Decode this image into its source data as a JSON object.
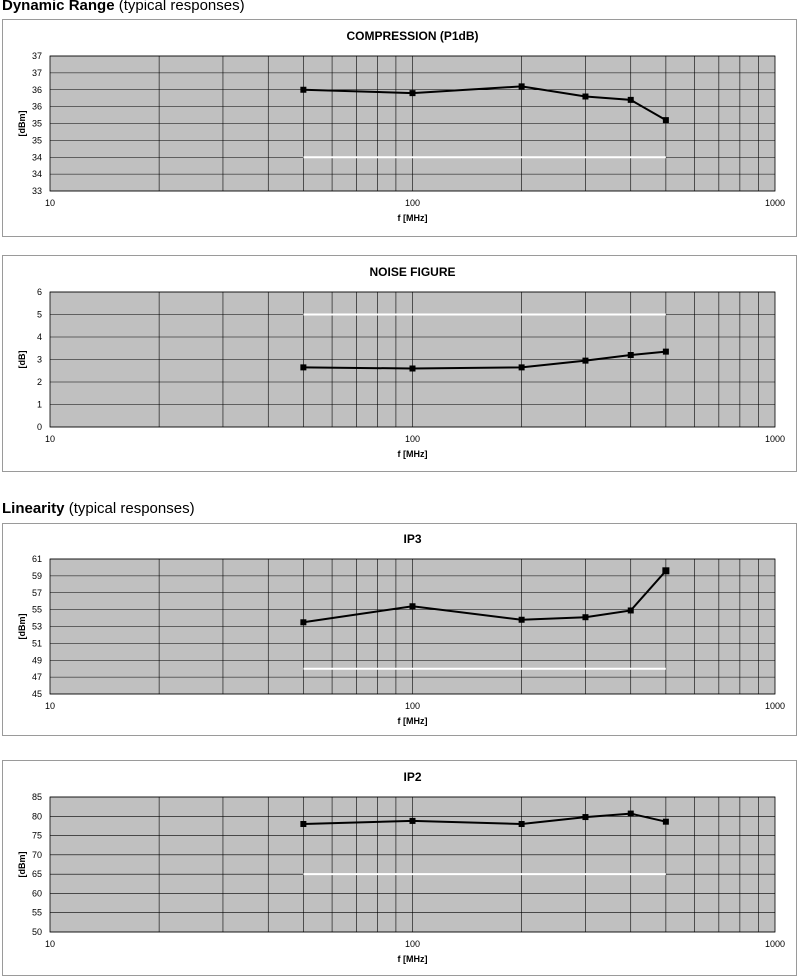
{
  "sections": [
    {
      "heading_bold": "Dynamic Range",
      "heading_rest": " (typical responses)"
    },
    {
      "heading_bold": "Linearity",
      "heading_rest": " (typical responses)"
    }
  ],
  "chart_data": [
    {
      "type": "line",
      "title": "COMPRESSION (P1dB)",
      "xlabel": "f [MHz]",
      "ylabel": "[dBm]",
      "x_scale": "log",
      "xlim": [
        10,
        1000
      ],
      "x_tick_labels": [
        "10",
        "100",
        "1000"
      ],
      "ylim": [
        33,
        37
      ],
      "y_tick_labels": [
        "37",
        "37",
        "36",
        "36",
        "35",
        "35",
        "34",
        "34",
        "33"
      ],
      "grid": true,
      "series": [
        {
          "x": [
            50,
            100,
            200,
            300,
            400,
            500
          ],
          "values": [
            36.0,
            35.9,
            36.1,
            35.8,
            35.7,
            35.1
          ]
        }
      ],
      "white_line": {
        "x": [
          50,
          500
        ],
        "y": 34.0
      }
    },
    {
      "type": "line",
      "title": "NOISE FIGURE",
      "xlabel": "f [MHz]",
      "ylabel": "[dB]",
      "x_scale": "log",
      "xlim": [
        10,
        1000
      ],
      "x_tick_labels": [
        "10",
        "100",
        "1000"
      ],
      "ylim": [
        0,
        6
      ],
      "y_tick_labels": [
        "6",
        "5",
        "4",
        "3",
        "2",
        "1",
        "0"
      ],
      "grid": true,
      "series": [
        {
          "x": [
            50,
            100,
            200,
            300,
            400,
            500
          ],
          "values": [
            2.65,
            2.6,
            2.65,
            2.95,
            3.2,
            3.35
          ]
        }
      ],
      "white_line": {
        "x": [
          50,
          500
        ],
        "y": 5.0
      }
    },
    {
      "type": "line",
      "title": "IP3",
      "xlabel": "f [MHz]",
      "ylabel": "[dBm]",
      "x_scale": "log",
      "xlim": [
        10,
        1000
      ],
      "x_tick_labels": [
        "10",
        "100",
        "1000"
      ],
      "ylim": [
        45,
        61
      ],
      "y_tick_labels": [
        "61",
        "59",
        "57",
        "55",
        "53",
        "51",
        "49",
        "47",
        "45"
      ],
      "grid": true,
      "series": [
        {
          "x": [
            50,
            100,
            200,
            300,
            400,
            500
          ],
          "values": [
            53.5,
            55.4,
            53.8,
            54.1,
            54.9,
            59.6
          ]
        }
      ],
      "white_line": {
        "x": [
          50,
          500
        ],
        "y": 48.0
      }
    },
    {
      "type": "line",
      "title": "IP2",
      "xlabel": "f [MHz]",
      "ylabel": "[dBm]",
      "x_scale": "log",
      "xlim": [
        10,
        1000
      ],
      "x_tick_labels": [
        "10",
        "100",
        "1000"
      ],
      "ylim": [
        50,
        85
      ],
      "y_tick_labels": [
        "85",
        "80",
        "75",
        "70",
        "65",
        "60",
        "55",
        "50"
      ],
      "grid": true,
      "series": [
        {
          "x": [
            50,
            100,
            200,
            300,
            400,
            500
          ],
          "values": [
            78.0,
            78.8,
            78.0,
            79.8,
            80.7,
            78.6
          ]
        }
      ],
      "white_line": {
        "x": [
          50,
          500
        ],
        "y": 65.0
      }
    }
  ],
  "colors": {
    "plot_bg": "#c0c0c0",
    "grid": "#000000",
    "series": "#000000",
    "white_line": "#ffffff",
    "panel_border": "#9a9a9a"
  }
}
